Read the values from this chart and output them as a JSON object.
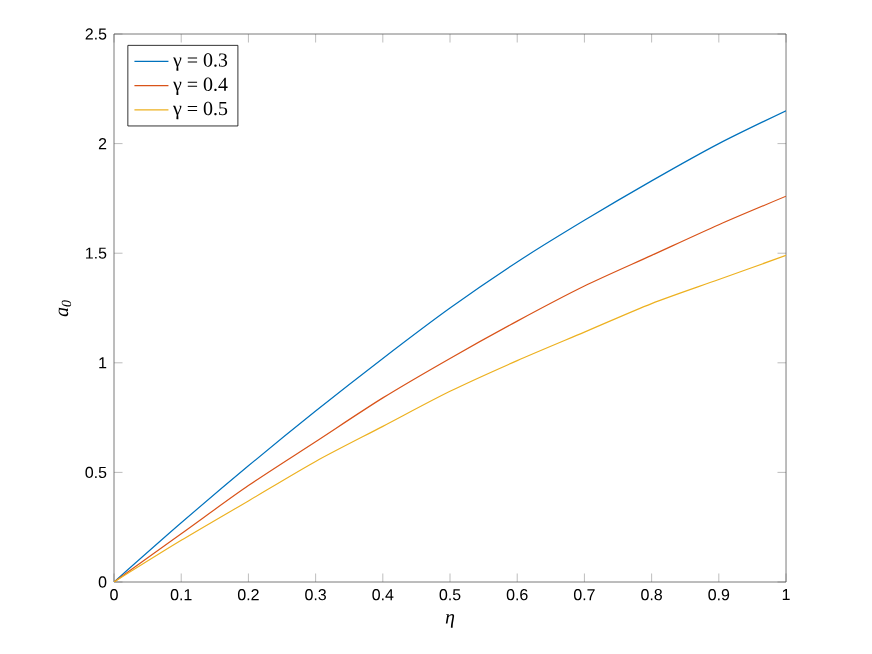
{
  "chart_data": {
    "type": "line",
    "xlabel": "η",
    "ylabel": "a$_{0}$",
    "x": [
      0,
      0.1,
      0.2,
      0.3,
      0.4,
      0.5,
      0.6,
      0.7,
      0.8,
      0.9,
      1
    ],
    "series": [
      {
        "name": "γ = 0.3",
        "color": "#0072bd",
        "values": [
          0,
          0.27,
          0.53,
          0.78,
          1.02,
          1.25,
          1.46,
          1.65,
          1.83,
          2.0,
          2.15
        ]
      },
      {
        "name": "γ = 0.4",
        "color": "#d95319",
        "values": [
          0,
          0.22,
          0.44,
          0.64,
          0.84,
          1.02,
          1.19,
          1.35,
          1.49,
          1.63,
          1.76
        ]
      },
      {
        "name": "γ = 0.5",
        "color": "#edb120",
        "values": [
          0,
          0.19,
          0.37,
          0.55,
          0.71,
          0.87,
          1.01,
          1.14,
          1.27,
          1.38,
          1.49
        ]
      }
    ],
    "xlim": [
      0,
      1
    ],
    "ylim": [
      0,
      2.5
    ],
    "xticks": [
      0,
      0.1,
      0.2,
      0.3,
      0.4,
      0.5,
      0.6,
      0.7,
      0.8,
      0.9,
      1
    ],
    "yticks": [
      0,
      0.5,
      1,
      1.5,
      2,
      2.5
    ],
    "grid": false,
    "legend": "top left",
    "marker": "none",
    "line_style": "solid"
  }
}
